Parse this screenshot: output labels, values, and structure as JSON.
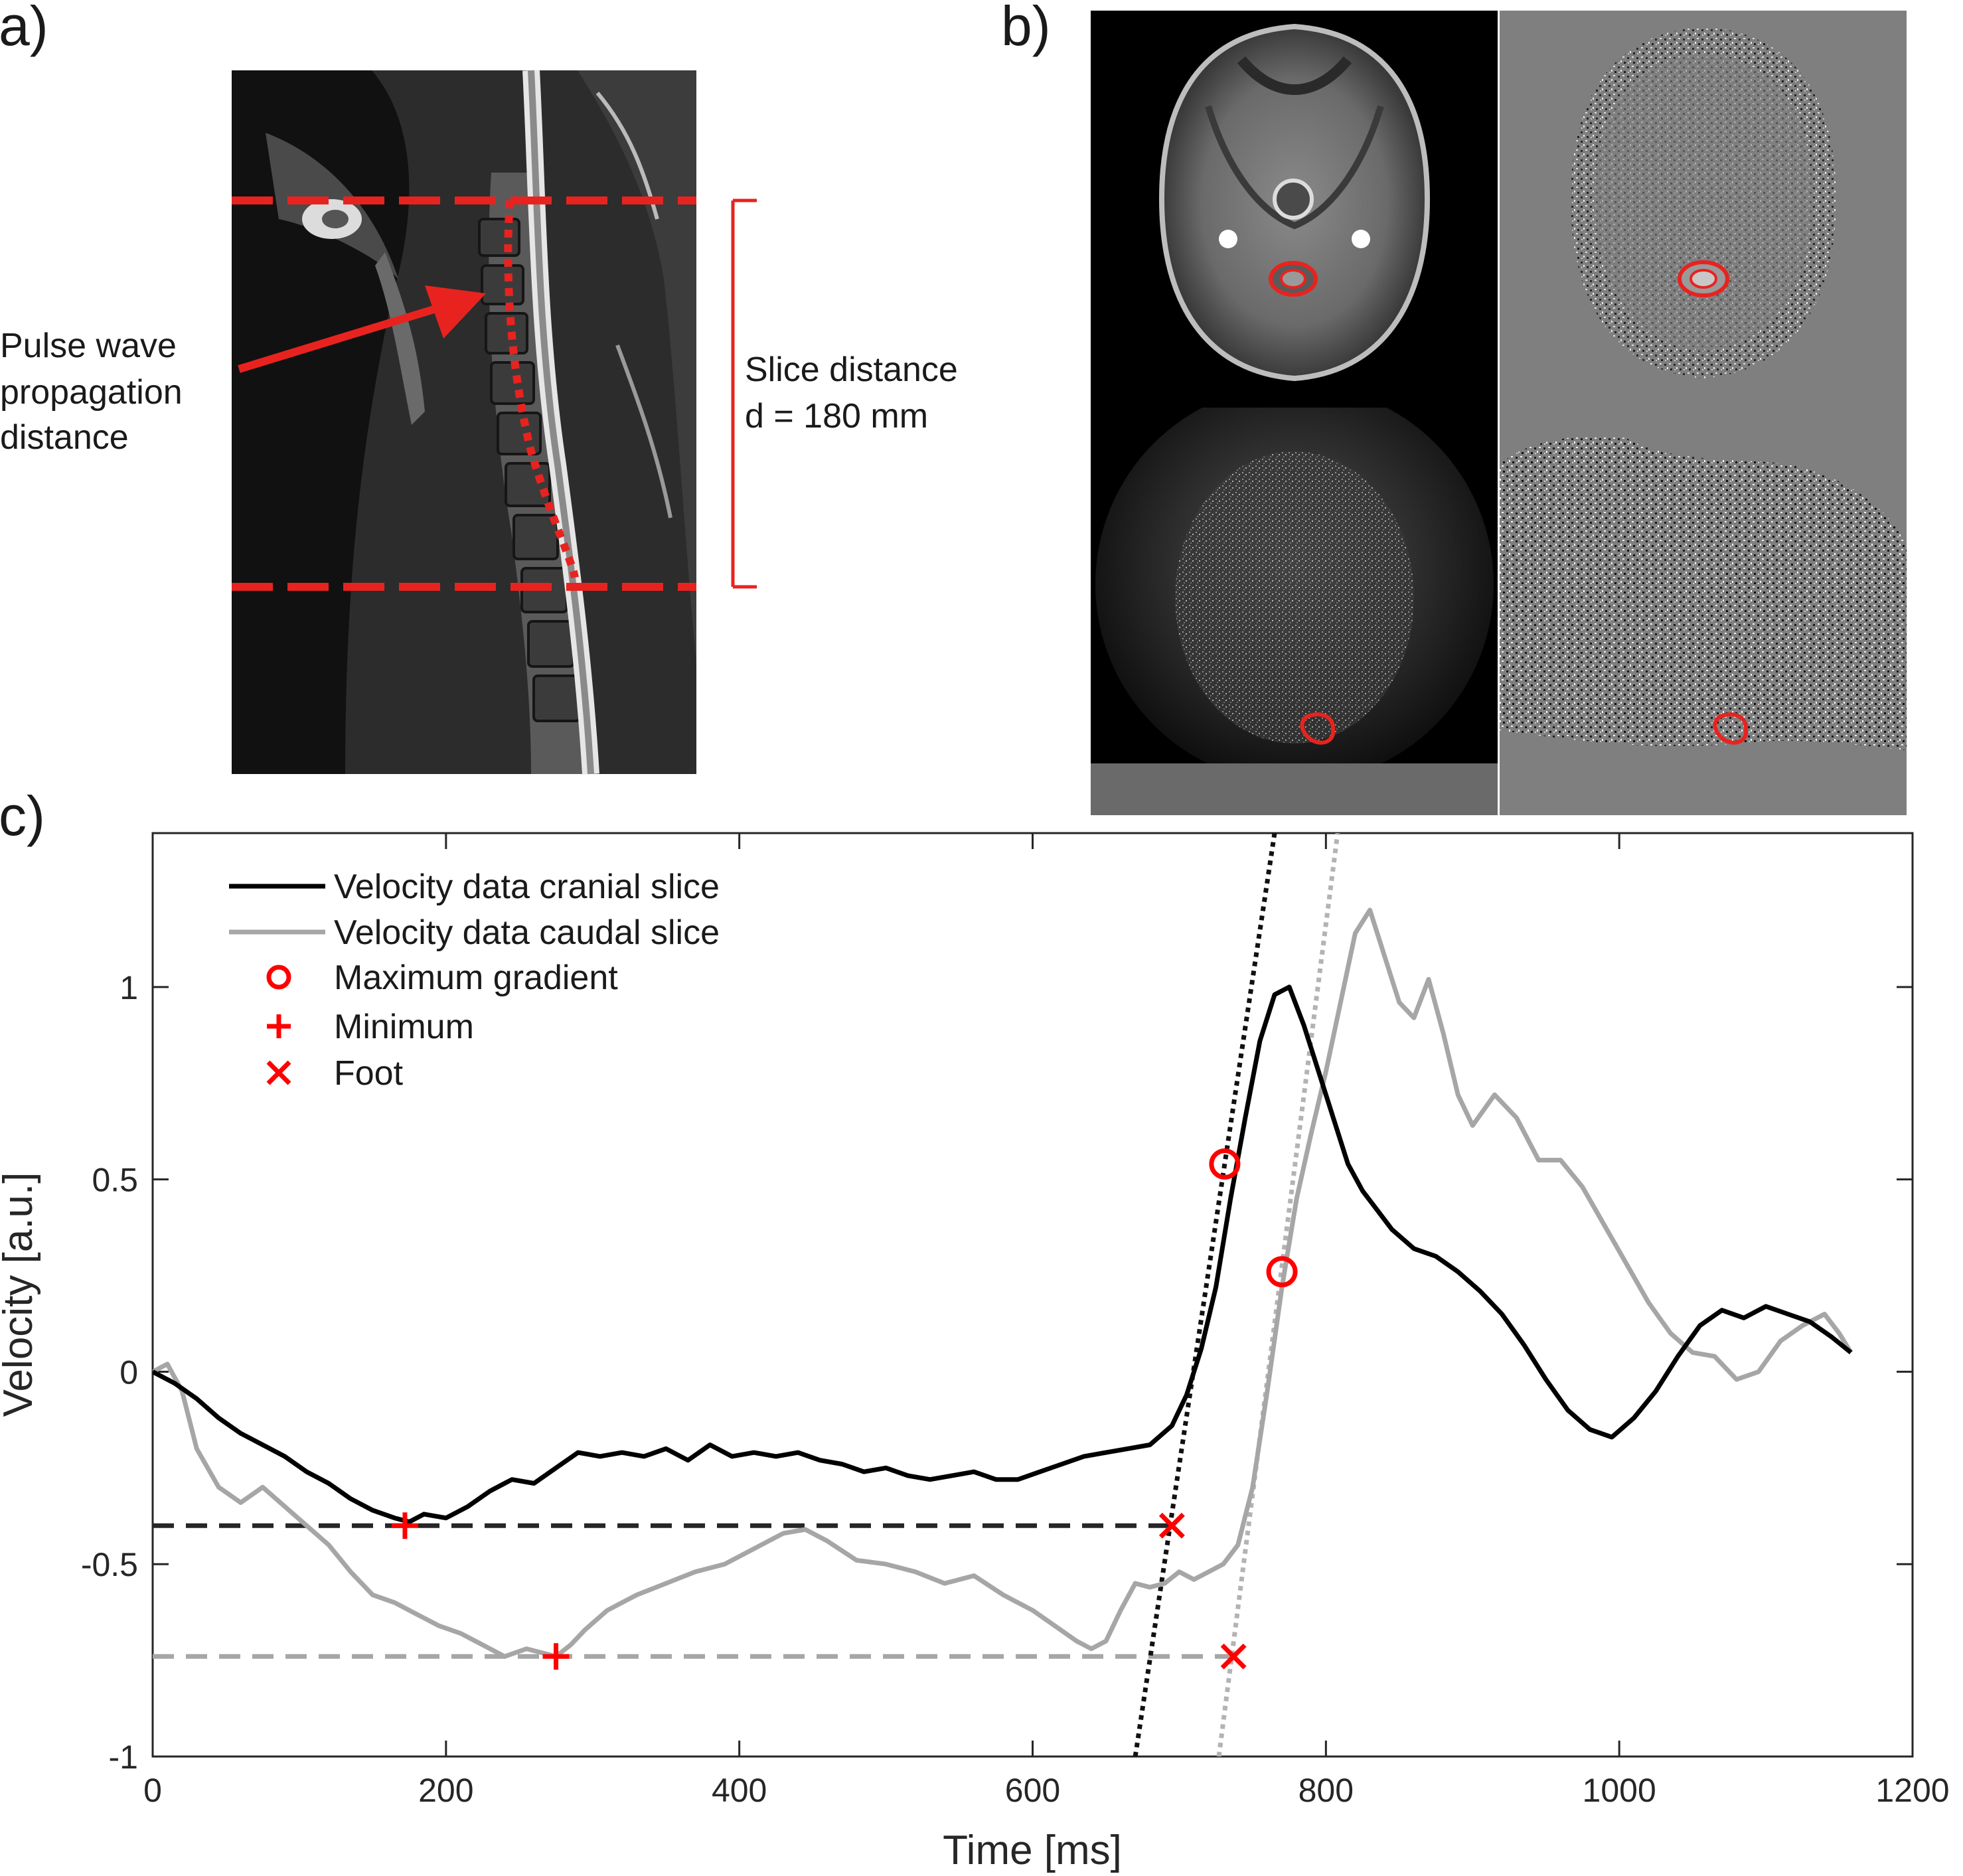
{
  "panels": {
    "a": {
      "label": "a)",
      "arrow_text": [
        "Pulse wave",
        "propagation",
        "distance"
      ],
      "slice_text": [
        "Slice distance",
        "d = 180 mm"
      ]
    },
    "b": {
      "label": "b)"
    },
    "c": {
      "label": "c)"
    }
  },
  "colors": {
    "cranial": "#000000",
    "caudal": "#a6a6a6",
    "marker": "#ff0000",
    "overlay": "#e8231f"
  },
  "chart_data": {
    "type": "line",
    "title": "",
    "xlabel": "Time [ms]",
    "ylabel": "Velocity [a.u.]",
    "xlim": [
      0,
      1200
    ],
    "ylim": [
      -1,
      1.4
    ],
    "xticks": [
      0,
      200,
      400,
      600,
      800,
      1000,
      1200
    ],
    "yticks": [
      -1,
      -0.5,
      0,
      0.5,
      1
    ],
    "xtick_labels": [
      "0",
      "200",
      "400",
      "600",
      "800",
      "1000",
      "1200"
    ],
    "ytick_labels": [
      "-1",
      "-0.5",
      "0",
      "0.5",
      "1"
    ],
    "legend_position": "top-left",
    "series": [
      {
        "name": "Velocity data cranial slice",
        "color": "#000000",
        "x": [
          0,
          15,
          30,
          45,
          60,
          75,
          90,
          105,
          120,
          135,
          150,
          165,
          175,
          185,
          200,
          215,
          230,
          245,
          260,
          275,
          290,
          305,
          320,
          335,
          350,
          365,
          380,
          395,
          410,
          425,
          440,
          455,
          470,
          485,
          500,
          515,
          530,
          545,
          560,
          575,
          590,
          605,
          620,
          635,
          650,
          665,
          680,
          695,
          705,
          715,
          725,
          735,
          745,
          755,
          765,
          775,
          785,
          795,
          805,
          815,
          825,
          835,
          845,
          860,
          875,
          890,
          905,
          920,
          935,
          950,
          965,
          980,
          995,
          1010,
          1025,
          1040,
          1055,
          1070,
          1085,
          1100,
          1115,
          1130,
          1145,
          1158
        ],
        "y": [
          0,
          -0.03,
          -0.07,
          -0.12,
          -0.16,
          -0.19,
          -0.22,
          -0.26,
          -0.29,
          -0.33,
          -0.36,
          -0.38,
          -0.39,
          -0.37,
          -0.38,
          -0.35,
          -0.31,
          -0.28,
          -0.29,
          -0.25,
          -0.21,
          -0.22,
          -0.21,
          -0.22,
          -0.2,
          -0.23,
          -0.19,
          -0.22,
          -0.21,
          -0.22,
          -0.21,
          -0.23,
          -0.24,
          -0.26,
          -0.25,
          -0.27,
          -0.28,
          -0.27,
          -0.26,
          -0.28,
          -0.28,
          -0.26,
          -0.24,
          -0.22,
          -0.21,
          -0.2,
          -0.19,
          -0.14,
          -0.06,
          0.06,
          0.22,
          0.45,
          0.66,
          0.86,
          0.98,
          1.0,
          0.9,
          0.78,
          0.66,
          0.54,
          0.47,
          0.42,
          0.37,
          0.32,
          0.3,
          0.26,
          0.21,
          0.15,
          0.07,
          -0.02,
          -0.1,
          -0.15,
          -0.17,
          -0.12,
          -0.05,
          0.04,
          0.12,
          0.16,
          0.14,
          0.17,
          0.15,
          0.13,
          0.09,
          0.05
        ]
      },
      {
        "name": "Velocity data caudal slice",
        "color": "#a6a6a6",
        "x": [
          0,
          10,
          20,
          30,
          45,
          60,
          75,
          90,
          105,
          120,
          135,
          150,
          165,
          180,
          195,
          210,
          225,
          240,
          255,
          265,
          275,
          285,
          295,
          310,
          330,
          350,
          370,
          390,
          410,
          430,
          445,
          460,
          480,
          500,
          520,
          540,
          560,
          580,
          600,
          615,
          630,
          640,
          650,
          660,
          670,
          680,
          690,
          700,
          710,
          720,
          730,
          740,
          750,
          760,
          770,
          780,
          790,
          800,
          810,
          820,
          830,
          840,
          850,
          860,
          870,
          880,
          890,
          900,
          915,
          930,
          945,
          960,
          975,
          990,
          1005,
          1020,
          1035,
          1050,
          1065,
          1080,
          1095,
          1110,
          1125,
          1140,
          1150,
          1158
        ],
        "y": [
          0,
          0.02,
          -0.05,
          -0.2,
          -0.3,
          -0.34,
          -0.3,
          -0.35,
          -0.4,
          -0.45,
          -0.52,
          -0.58,
          -0.6,
          -0.63,
          -0.66,
          -0.68,
          -0.71,
          -0.74,
          -0.72,
          -0.73,
          -0.74,
          -0.71,
          -0.67,
          -0.62,
          -0.58,
          -0.55,
          -0.52,
          -0.5,
          -0.46,
          -0.42,
          -0.41,
          -0.44,
          -0.49,
          -0.5,
          -0.52,
          -0.55,
          -0.53,
          -0.58,
          -0.62,
          -0.66,
          -0.7,
          -0.72,
          -0.7,
          -0.62,
          -0.55,
          -0.56,
          -0.55,
          -0.52,
          -0.54,
          -0.52,
          -0.5,
          -0.45,
          -0.3,
          -0.05,
          0.22,
          0.45,
          0.62,
          0.78,
          0.96,
          1.14,
          1.2,
          1.08,
          0.96,
          0.92,
          1.02,
          0.88,
          0.72,
          0.64,
          0.72,
          0.66,
          0.55,
          0.55,
          0.48,
          0.38,
          0.28,
          0.18,
          0.1,
          0.05,
          0.04,
          -0.02,
          0.0,
          0.08,
          0.12,
          0.15,
          0.1,
          0.05
        ]
      }
    ],
    "markers": {
      "maximum_gradient": [
        {
          "x": 731,
          "y": 0.54
        },
        {
          "x": 770,
          "y": 0.26
        }
      ],
      "minimum": [
        {
          "x": 172,
          "y": -0.4
        },
        {
          "x": 275,
          "y": -0.74
        }
      ],
      "foot": [
        {
          "x": 695,
          "y": -0.4
        },
        {
          "x": 737,
          "y": -0.74
        }
      ]
    },
    "baselines": [
      {
        "series": "cranial",
        "y": -0.4,
        "x_from": 0,
        "x_to": 695
      },
      {
        "series": "caudal",
        "y": -0.74,
        "x_from": 0,
        "x_to": 737
      }
    ],
    "tangents": [
      {
        "series": "cranial",
        "points": [
          {
            "x": 670,
            "y": -1.0
          },
          {
            "x": 765,
            "y": 1.4
          }
        ]
      },
      {
        "series": "caudal",
        "points": [
          {
            "x": 727,
            "y": -1.0
          },
          {
            "x": 808,
            "y": 1.4
          }
        ]
      }
    ],
    "legend": [
      {
        "label": "Velocity data cranial slice",
        "kind": "line",
        "color": "#000000"
      },
      {
        "label": "Velocity data caudal slice",
        "kind": "line",
        "color": "#a6a6a6"
      },
      {
        "label": "Maximum gradient",
        "kind": "circle",
        "color": "#ff0000"
      },
      {
        "label": "Minimum",
        "kind": "plus",
        "color": "#ff0000"
      },
      {
        "label": "Foot",
        "kind": "cross",
        "color": "#ff0000"
      }
    ]
  }
}
